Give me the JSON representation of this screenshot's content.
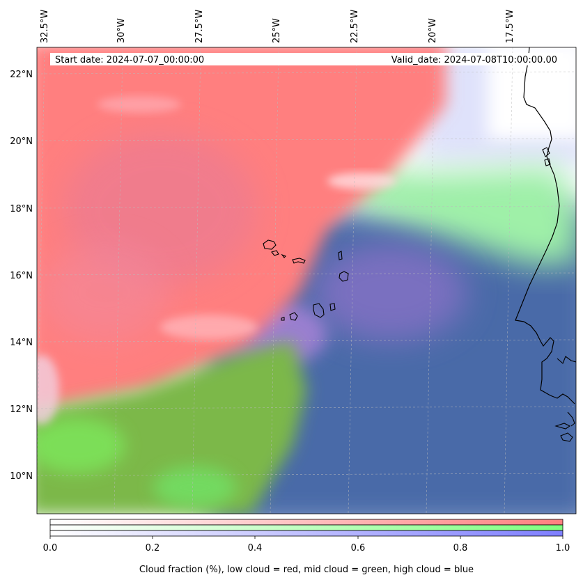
{
  "map": {
    "start_date": "Start date: 2024-07-07_00:00:00",
    "valid_date": "Valid_date: 2024-07-08T10:00:00.00",
    "lon_ticks": [
      "32.5°W",
      "30°W",
      "27.5°W",
      "25°W",
      "22.5°W",
      "20°W",
      "17.5°W"
    ],
    "lat_ticks": [
      "22°N",
      "20°N",
      "18°N",
      "16°N",
      "14°N",
      "12°N",
      "10°N"
    ],
    "layer_colors": {
      "low": "#ff7f7f",
      "mid": "#7fff7f",
      "high": "#7f7fff"
    },
    "ocean_mix_color": "#4a6aa8",
    "coastline_color": "#000000"
  },
  "colorbar": {
    "ticks": [
      "0.0",
      "0.2",
      "0.4",
      "0.6",
      "0.8",
      "1.0"
    ],
    "label": "Cloud fraction (%), low cloud = red, mid cloud = green, high cloud = blue",
    "bars": [
      {
        "name": "low",
        "color": "#ff7f7f"
      },
      {
        "name": "mid",
        "color": "#7fff7f"
      },
      {
        "name": "high",
        "color": "#7f7fff"
      }
    ]
  }
}
